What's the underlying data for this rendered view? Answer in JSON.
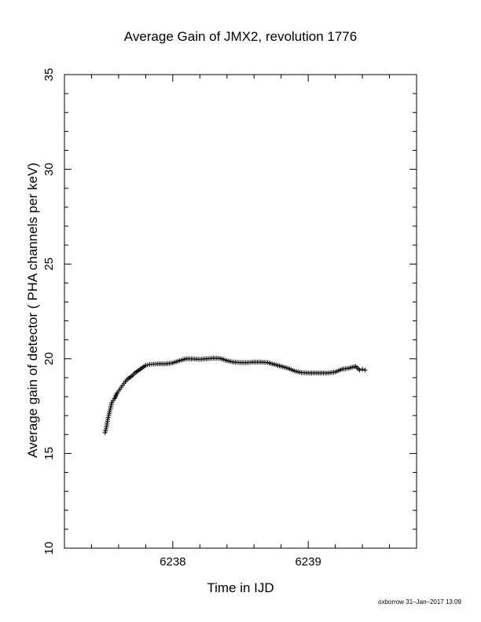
{
  "chart_data": {
    "type": "scatter",
    "title": "Average Gain of JMX2, revolution 1776",
    "xlabel": "Time in IJD",
    "ylabel": "Average gain of detector ( PHA channels per keV)",
    "xlim": [
      6237.2,
      6239.8
    ],
    "ylim": [
      10,
      35
    ],
    "x_ticks": [
      6238,
      6239
    ],
    "x_tick_labels": [
      "6238",
      "6239"
    ],
    "y_ticks": [
      10,
      15,
      20,
      25,
      30,
      35
    ],
    "y_tick_labels": [
      "10",
      "15",
      "20",
      "25",
      "30",
      "35"
    ],
    "grid": false,
    "marker": "plus",
    "marker_color": "#000000",
    "series": [
      {
        "x": [
          6237.5,
          6237.51,
          6237.52,
          6237.53,
          6237.54,
          6237.55,
          6237.57,
          6237.59,
          6237.61,
          6237.63,
          6237.65,
          6237.67,
          6237.7,
          6237.72,
          6237.75,
          6237.78,
          6237.8,
          6237.83,
          6237.86,
          6237.9,
          6237.95,
          6238.0,
          6238.05,
          6238.1,
          6238.15,
          6238.2,
          6238.25,
          6238.3,
          6238.35,
          6238.4,
          6238.45,
          6238.5,
          6238.55,
          6238.6,
          6238.65,
          6238.7,
          6238.75,
          6238.8,
          6238.85,
          6238.9,
          6238.95,
          6239.0,
          6239.05,
          6239.1,
          6239.15,
          6239.2,
          6239.25,
          6239.3,
          6239.35,
          6239.38,
          6239.4,
          6239.42
        ],
        "y": [
          16.1,
          16.4,
          16.8,
          17.1,
          17.4,
          17.7,
          17.9,
          18.2,
          18.4,
          18.6,
          18.8,
          18.95,
          19.1,
          19.25,
          19.4,
          19.55,
          19.65,
          19.7,
          19.72,
          19.73,
          19.73,
          19.78,
          19.9,
          20.0,
          19.99,
          19.97,
          20.0,
          20.03,
          20.02,
          19.9,
          19.82,
          19.8,
          19.8,
          19.82,
          19.82,
          19.8,
          19.7,
          19.6,
          19.5,
          19.35,
          19.27,
          19.25,
          19.25,
          19.25,
          19.25,
          19.3,
          19.45,
          19.5,
          19.6,
          19.4,
          19.45,
          19.4
        ]
      }
    ]
  },
  "footer": "oxborrow 31–Jan–2017 13:09"
}
